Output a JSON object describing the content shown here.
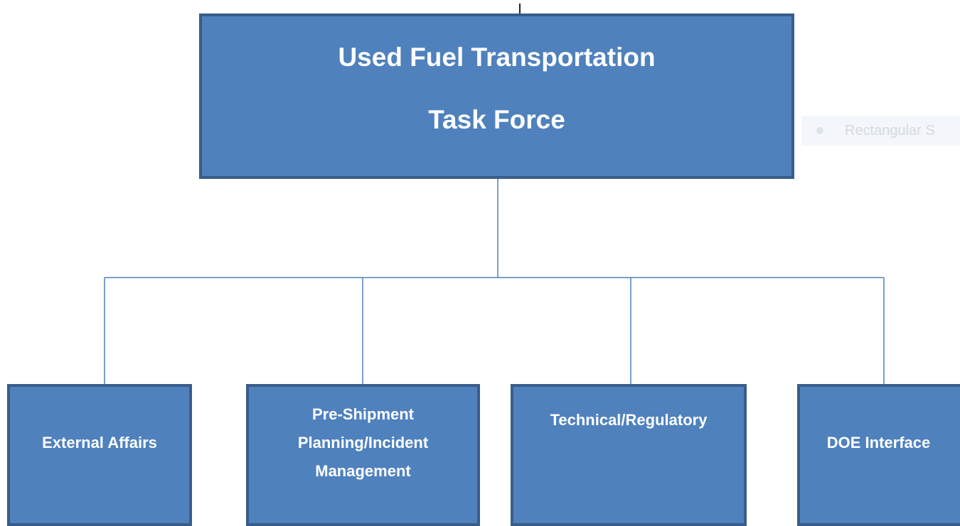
{
  "root": {
    "lines": [
      "Used Fuel Transportation",
      "Task Force"
    ]
  },
  "children": [
    {
      "lines": [
        "External Affairs"
      ]
    },
    {
      "lines": [
        "Pre-Shipment",
        "Planning/Incident",
        "Management"
      ]
    },
    {
      "lines": [
        "Technical/Regulatory"
      ]
    },
    {
      "lines": [
        "DOE Interface"
      ]
    }
  ],
  "tooltip": {
    "text": "Rectangular S"
  }
}
